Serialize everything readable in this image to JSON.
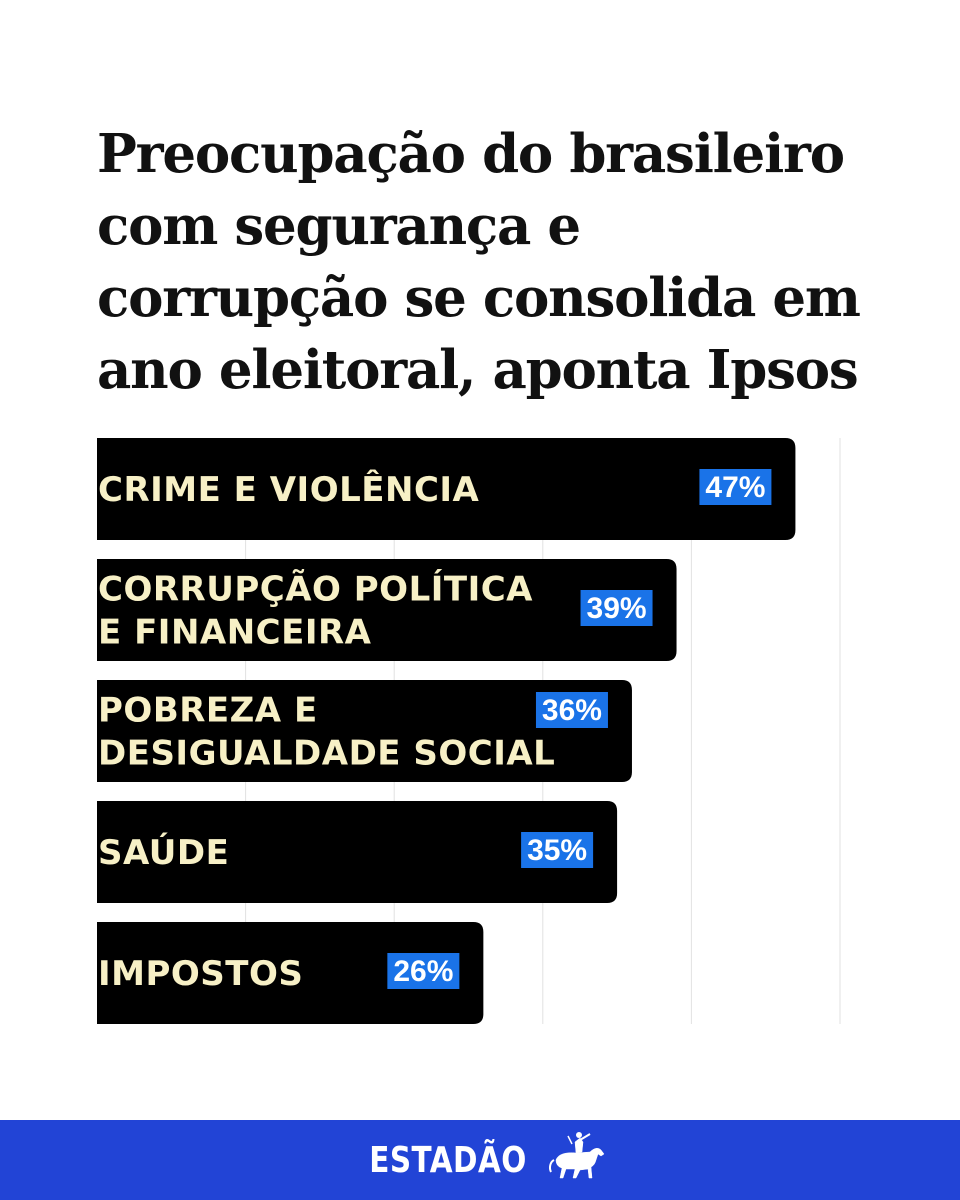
{
  "headline": "Preocupação do brasileiro\ncom segurança e\ncorrupção se consolida em\nano eleitoral, aponta Ipsos",
  "footer": {
    "brand": "ESTADÃO",
    "logo_icon": "horse-rider-icon"
  },
  "colors": {
    "bar": "#000000",
    "label_text": "#f7f0c6",
    "value_badge": "#1a73e8",
    "footer_bg": "#2244d6"
  },
  "chart_data": {
    "type": "bar",
    "orientation": "horizontal",
    "categories": [
      [
        "CRIME E VIOLÊNCIA"
      ],
      [
        "CORRUPÇÃO POLÍTICA",
        "E FINANCEIRA"
      ],
      [
        "POBREZA E",
        "DESIGUALDADE SOCIAL"
      ],
      [
        "SAÚDE"
      ],
      [
        "IMPOSTOS"
      ]
    ],
    "values": [
      47,
      39,
      36,
      35,
      26
    ],
    "value_labels": [
      "47%",
      "39%",
      "36%",
      "35%",
      "26%"
    ],
    "xlim": [
      0,
      50
    ],
    "grid": true
  }
}
